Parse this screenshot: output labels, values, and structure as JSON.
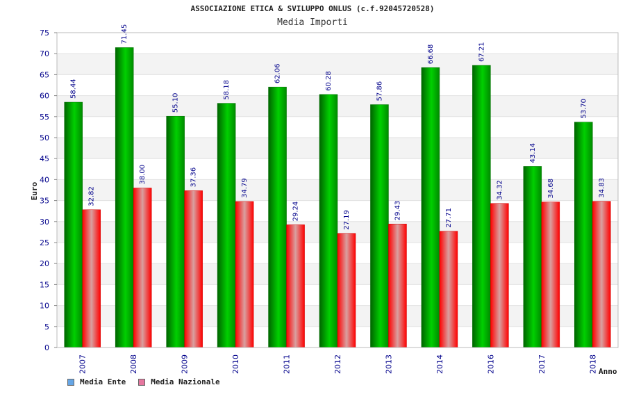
{
  "chart_data": {
    "type": "bar",
    "title": "ASSOCIAZIONE ETICA & SVILUPPO ONLUS (c.f.92045720528)",
    "subtitle": "Media Importi",
    "xlabel": "Anno",
    "ylabel": "Euro",
    "categories": [
      "2007",
      "2008",
      "2009",
      "2010",
      "2011",
      "2012",
      "2013",
      "2014",
      "2016",
      "2017",
      "2018"
    ],
    "series": [
      {
        "name": "Media Ente",
        "values": [
          58.44,
          71.45,
          55.1,
          58.18,
          62.06,
          60.28,
          57.86,
          66.68,
          67.21,
          43.14,
          53.7
        ],
        "labels": [
          "58.44",
          "71.45",
          "55.10",
          "58.18",
          "62.06",
          "60.28",
          "57.86",
          "66.68",
          "67.21",
          "43.14",
          "53.70"
        ],
        "color": "#00b400",
        "legend_color": "#66a6e6"
      },
      {
        "name": "Media Nazionale",
        "values": [
          32.82,
          38.0,
          37.36,
          34.79,
          29.24,
          27.19,
          29.43,
          27.71,
          34.32,
          34.68,
          34.83
        ],
        "labels": [
          "32.82",
          "38.00",
          "37.36",
          "34.79",
          "29.24",
          "27.19",
          "29.43",
          "27.71",
          "34.32",
          "34.68",
          "34.83"
        ],
        "color": "#ff0000",
        "legend_color": "#e6779f"
      }
    ],
    "ylim": [
      0,
      75
    ],
    "yticks": [
      0,
      5,
      10,
      15,
      20,
      25,
      30,
      35,
      40,
      45,
      50,
      55,
      60,
      65,
      70,
      75
    ],
    "grid": "horizontal bands",
    "legend_position": "bottom-left"
  }
}
